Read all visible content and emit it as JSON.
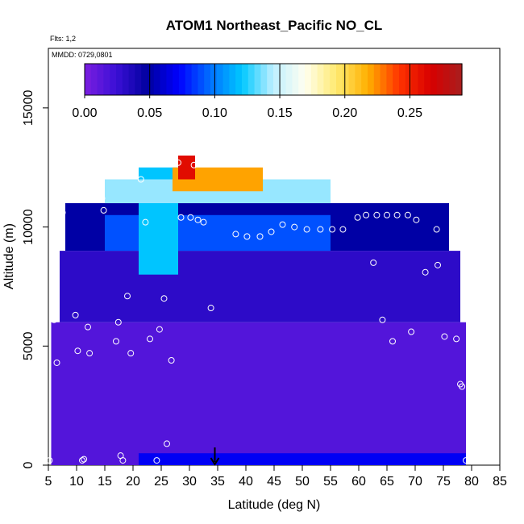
{
  "chart_data": {
    "type": "heatmap",
    "title": "ATOM1 Northeast_Pacific NO_CL",
    "subtitle_flights": "Flts: 1,2",
    "subtitle_dates": "MMDD: 0729,0801",
    "xlabel": "Latitude (deg N)",
    "ylabel": "Altitude (m)",
    "xlim": [
      5,
      85
    ],
    "ylim": [
      0,
      17500
    ],
    "x_ticks": [
      "5",
      "10",
      "15",
      "20",
      "25",
      "30",
      "35",
      "40",
      "45",
      "50",
      "55",
      "60",
      "65",
      "70",
      "75",
      "80",
      "85"
    ],
    "y_ticks": [
      "0",
      "5000",
      "10000",
      "15000"
    ],
    "colorbar": {
      "range": [
        0,
        0.29
      ],
      "ticks": [
        "0.00",
        "0.05",
        "0.10",
        "0.15",
        "0.20",
        "0.25"
      ],
      "colors": [
        "#7b1fe0",
        "#3b0fd6",
        "#00009e",
        "#0000ff",
        "#0070ff",
        "#00c8ff",
        "#bfefff",
        "#fffff0",
        "#ffea70",
        "#ffb000",
        "#ff3300",
        "#d80000",
        "#a81e1e"
      ]
    },
    "cells": [
      {
        "lat": [
          5.5,
          79
        ],
        "alt": [
          0,
          6000
        ],
        "value": 0.015
      },
      {
        "lat": [
          7,
          78
        ],
        "alt": [
          6000,
          9000
        ],
        "value": 0.03
      },
      {
        "lat": [
          8,
          76
        ],
        "alt": [
          9000,
          11000
        ],
        "value": 0.05
      },
      {
        "lat": [
          15,
          55
        ],
        "alt": [
          9000,
          10500
        ],
        "value": 0.09
      },
      {
        "lat": [
          21,
          28
        ],
        "alt": [
          8000,
          12500
        ],
        "value": 0.12
      },
      {
        "lat": [
          15,
          55
        ],
        "alt": [
          11000,
          12000
        ],
        "value": 0.14
      },
      {
        "lat": [
          27,
          43
        ],
        "alt": [
          11500,
          12500
        ],
        "value": 0.22
      },
      {
        "lat": [
          28,
          31
        ],
        "alt": [
          12000,
          13000
        ],
        "value": 0.26
      },
      {
        "lat": [
          21,
          79
        ],
        "alt": [
          0,
          500
        ],
        "value": 0.07
      }
    ],
    "observations": [
      [
        5.2,
        200
      ],
      [
        6,
        6100
      ],
      [
        6.5,
        4300
      ],
      [
        7.5,
        10600
      ],
      [
        8.2,
        11200
      ],
      [
        9.8,
        6300
      ],
      [
        10.2,
        4800
      ],
      [
        11,
        200
      ],
      [
        11.3,
        250
      ],
      [
        12,
        5800
      ],
      [
        12.3,
        4700
      ],
      [
        14.5,
        11200
      ],
      [
        14.8,
        10700
      ],
      [
        17,
        5200
      ],
      [
        17.4,
        6000
      ],
      [
        17.8,
        400
      ],
      [
        18.2,
        200
      ],
      [
        19,
        7100
      ],
      [
        19.6,
        4700
      ],
      [
        21.4,
        12000
      ],
      [
        22.2,
        10200
      ],
      [
        23,
        5300
      ],
      [
        24.2,
        200
      ],
      [
        24.7,
        5700
      ],
      [
        25.5,
        7000
      ],
      [
        26,
        900
      ],
      [
        26.8,
        4400
      ],
      [
        28,
        12700
      ],
      [
        28.5,
        10400
      ],
      [
        30.2,
        10400
      ],
      [
        30.8,
        12600
      ],
      [
        31.5,
        10300
      ],
      [
        32.5,
        10200
      ],
      [
        33.8,
        6600
      ],
      [
        38.2,
        9700
      ],
      [
        40.2,
        9600
      ],
      [
        42.5,
        9600
      ],
      [
        44.5,
        9800
      ],
      [
        46.5,
        10100
      ],
      [
        48.6,
        10000
      ],
      [
        50.8,
        9900
      ],
      [
        53.2,
        9900
      ],
      [
        55.3,
        9900
      ],
      [
        57.2,
        9900
      ],
      [
        59.8,
        10400
      ],
      [
        61.3,
        10500
      ],
      [
        62.6,
        8500
      ],
      [
        63.2,
        10500
      ],
      [
        64.2,
        6100
      ],
      [
        65,
        10500
      ],
      [
        66,
        5200
      ],
      [
        66.8,
        10500
      ],
      [
        67.3,
        11300
      ],
      [
        68.7,
        10500
      ],
      [
        69.3,
        5600
      ],
      [
        70.2,
        10300
      ],
      [
        71.8,
        8100
      ],
      [
        73.8,
        9900
      ],
      [
        74,
        8400
      ],
      [
        75.2,
        5400
      ],
      [
        76.8,
        9700
      ],
      [
        77.2,
        9200
      ],
      [
        77.3,
        5300
      ],
      [
        78,
        3400
      ],
      [
        78.3,
        3300
      ],
      [
        79,
        200
      ]
    ],
    "marker_arrow_lat": 34.5,
    "grid": false
  }
}
